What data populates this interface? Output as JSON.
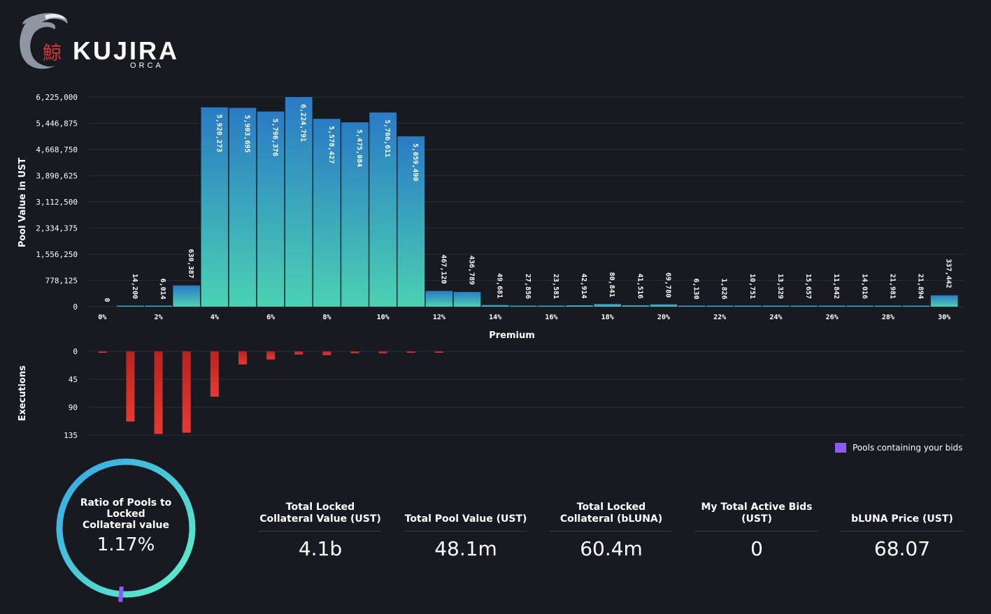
{
  "logo": {
    "brand": "KUJIRA",
    "sub": "ORCA",
    "kanji": "鯨",
    "icon": "orca-whale-logo"
  },
  "colors": {
    "background": "#181a22",
    "bar_top": "#2a7bc4",
    "bar_bottom": "#4bd1b3",
    "execution": "#e2352d",
    "ring_start": "#38a6e6",
    "ring_end": "#5ff0c8",
    "user_bids": "#8a5cf0"
  },
  "chart_data": [
    {
      "type": "bar",
      "xlabel": "Premium",
      "ylabel": "Pool Value in UST",
      "y_ticks": [
        "0",
        "778,125",
        "1,556,250",
        "2,334,375",
        "3,112,500",
        "3,890,625",
        "4,668,750",
        "5,446,875",
        "6,225,000"
      ],
      "ylim": [
        0,
        6225000
      ],
      "x_tick_labels": [
        "0%",
        "2%",
        "4%",
        "6%",
        "8%",
        "10%",
        "12%",
        "14%",
        "16%",
        "18%",
        "20%",
        "22%",
        "24%",
        "26%",
        "28%",
        "30%"
      ],
      "categories": [
        "0%",
        "1%",
        "2%",
        "3%",
        "4%",
        "5%",
        "6%",
        "7%",
        "8%",
        "9%",
        "10%",
        "11%",
        "12%",
        "13%",
        "14%",
        "15%",
        "16%",
        "17%",
        "18%",
        "19%",
        "20%",
        "21%",
        "22%",
        "23%",
        "24%",
        "25%",
        "26%",
        "27%",
        "28%",
        "29%",
        "30%"
      ],
      "values": [
        0,
        14200,
        6014,
        630387,
        5920273,
        5903695,
        5796376,
        6224791,
        5578427,
        5475084,
        5766611,
        5059490,
        467120,
        436789,
        49681,
        27856,
        23581,
        42914,
        80841,
        41516,
        69780,
        6130,
        1826,
        10751,
        13329,
        15657,
        11842,
        14016,
        21981,
        21894,
        337442
      ],
      "value_labels": [
        "0",
        "14,200",
        "6,014",
        "630,387",
        "5,920,273",
        "5,903,695",
        "5,796,376",
        "6,224,791",
        "5,578,427",
        "5,475,084",
        "5,766,611",
        "5,059,490",
        "467,120",
        "436,789",
        "49,681",
        "27,856",
        "23,581",
        "42,914",
        "80,841",
        "41,516",
        "69,780",
        "6,130",
        "1,826",
        "10,751",
        "13,329",
        "15,657",
        "11,842",
        "14,016",
        "21,981",
        "21,894",
        "337,442"
      ],
      "grid": true
    },
    {
      "type": "bar",
      "ylabel": "Executions",
      "y_ticks": [
        "0",
        "45",
        "90",
        "135"
      ],
      "ylim": [
        0,
        135
      ],
      "orientation": "downward",
      "categories": [
        "0%",
        "1%",
        "2%",
        "3%",
        "4%",
        "5%",
        "6%",
        "7%",
        "8%",
        "9%",
        "10%",
        "11%",
        "12%"
      ],
      "values": [
        1,
        113,
        133,
        131,
        73,
        21,
        13,
        5,
        6,
        3,
        3,
        1,
        1
      ],
      "grid": true
    }
  ],
  "legend": {
    "label": "Pools containing your bids"
  },
  "ratio": {
    "label": "Ratio of Pools to Locked Collateral value",
    "value": "1.17%",
    "fraction": 0.0117
  },
  "stats": [
    {
      "label": "Total Locked Collateral Value (UST)",
      "value": "4.1b"
    },
    {
      "label": "Total Pool Value (UST)",
      "value": "48.1m"
    },
    {
      "label": "Total Locked Collateral (bLUNA)",
      "value": "60.4m"
    },
    {
      "label": "My Total Active Bids (UST)",
      "value": "0"
    },
    {
      "label": "bLUNA Price (UST)",
      "value": "68.07"
    }
  ]
}
